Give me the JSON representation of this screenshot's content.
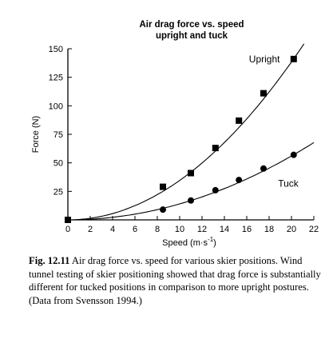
{
  "chart_data": {
    "type": "scatter",
    "title": "Air drag force vs. speed",
    "subtitle": "upright and tuck",
    "xlabel": "Speed (m·s",
    "xlabel_sup": "-1",
    "xlabel_close": ")",
    "ylabel": "Force (N)",
    "xlim": [
      0,
      22
    ],
    "ylim": [
      0,
      150
    ],
    "x_ticks": [
      0,
      2,
      4,
      6,
      8,
      10,
      12,
      14,
      16,
      18,
      20,
      22
    ],
    "y_ticks": [
      25,
      50,
      75,
      100,
      125,
      150
    ],
    "grid": false,
    "legend": "inline labels",
    "series": [
      {
        "name": "Upright",
        "marker": "square",
        "x": [
          0,
          8.5,
          11,
          13.2,
          15.3,
          17.5,
          20.2
        ],
        "y": [
          0,
          29,
          41,
          63,
          87,
          111,
          141
        ],
        "fit_coef": 0.346
      },
      {
        "name": "Tuck",
        "marker": "circle",
        "x": [
          0,
          8.5,
          11,
          13.2,
          15.3,
          17.5,
          20.2
        ],
        "y": [
          0,
          9,
          17,
          26,
          35,
          45,
          57
        ],
        "fit_coef": 0.14
      }
    ]
  },
  "caption": {
    "label": "Fig. 12.11",
    "text": "Air drag force vs. speed for various skier positions. Wind tunnel testing of skier positioning showed that drag force is substantially different for tucked positions in comparison to more upright postures. (Data from Svensson 1994.)"
  }
}
